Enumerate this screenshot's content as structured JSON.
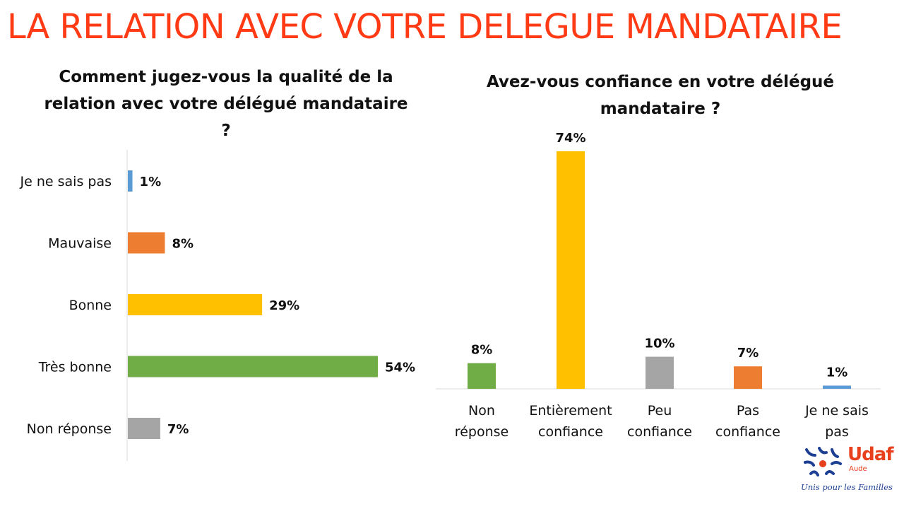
{
  "page": {
    "title": "LA RELATION AVEC VOTRE DELEGUE MANDATAIRE"
  },
  "logo": {
    "brand": "Udaf",
    "sub": "Aude",
    "tagline": "Unis pour les Familles",
    "icon": "udaf-family-icon"
  },
  "colors": {
    "title": "#ff3a14",
    "blue": "#5b9bd5",
    "orange": "#ed7d31",
    "yellow": "#ffc000",
    "green": "#70ad47",
    "gray": "#a5a5a5"
  },
  "chart_data": [
    {
      "type": "bar",
      "orientation": "horizontal",
      "title": "Comment jugez-vous la qualité de la relation avec votre délégué mandataire ?",
      "categories": [
        "Je ne sais pas",
        "Mauvaise",
        "Bonne",
        "Très bonne",
        "Non réponse"
      ],
      "values": [
        1,
        8,
        29,
        54,
        7
      ],
      "value_labels": [
        "1%",
        "8%",
        "29%",
        "54%",
        "7%"
      ],
      "colors": [
        "#5b9bd5",
        "#ed7d31",
        "#ffc000",
        "#70ad47",
        "#a5a5a5"
      ],
      "xlim": [
        0,
        54
      ],
      "grid": false,
      "legend": "none"
    },
    {
      "type": "bar",
      "orientation": "vertical",
      "title": "Avez-vous confiance en votre délégué mandataire ?",
      "categories": [
        [
          "Non",
          "réponse"
        ],
        [
          "Entièrement",
          "confiance"
        ],
        [
          "Peu",
          "confiance"
        ],
        [
          "Pas",
          "confiance"
        ],
        [
          "Je ne sais",
          "pas"
        ]
      ],
      "values": [
        8,
        74,
        10,
        7,
        1
      ],
      "value_labels": [
        "8%",
        "74%",
        "10%",
        "7%",
        "1%"
      ],
      "colors": [
        "#70ad47",
        "#ffc000",
        "#a5a5a5",
        "#ed7d31",
        "#5b9bd5"
      ],
      "ylim": [
        0,
        74
      ],
      "grid": false,
      "legend": "none"
    }
  ]
}
